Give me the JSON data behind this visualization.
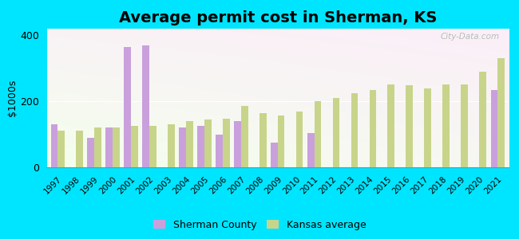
{
  "title": "Average permit cost in Sherman, KS",
  "ylabel": "$1000s",
  "years": [
    1997,
    1998,
    1999,
    2000,
    2001,
    2002,
    2003,
    2004,
    2005,
    2006,
    2007,
    2008,
    2009,
    2010,
    2011,
    2012,
    2013,
    2014,
    2015,
    2016,
    2017,
    2018,
    2019,
    2020,
    2021
  ],
  "sherman": [
    130,
    0,
    90,
    120,
    365,
    370,
    0,
    120,
    125,
    100,
    140,
    0,
    75,
    0,
    105,
    0,
    0,
    0,
    0,
    0,
    0,
    0,
    0,
    0,
    235
  ],
  "kansas": [
    110,
    110,
    120,
    120,
    125,
    125,
    130,
    140,
    145,
    148,
    185,
    165,
    158,
    170,
    200,
    210,
    225,
    235,
    250,
    248,
    240,
    252,
    252,
    290,
    330
  ],
  "sherman_color": "#c9a0dc",
  "kansas_color": "#c8d48a",
  "outer_background": "#00e5ff",
  "ylim": [
    0,
    420
  ],
  "yticks": [
    0,
    200,
    400
  ],
  "title_fontsize": 14,
  "watermark_text": "City-Data.com",
  "legend_sherman": "Sherman County",
  "legend_kansas": "Kansas average"
}
